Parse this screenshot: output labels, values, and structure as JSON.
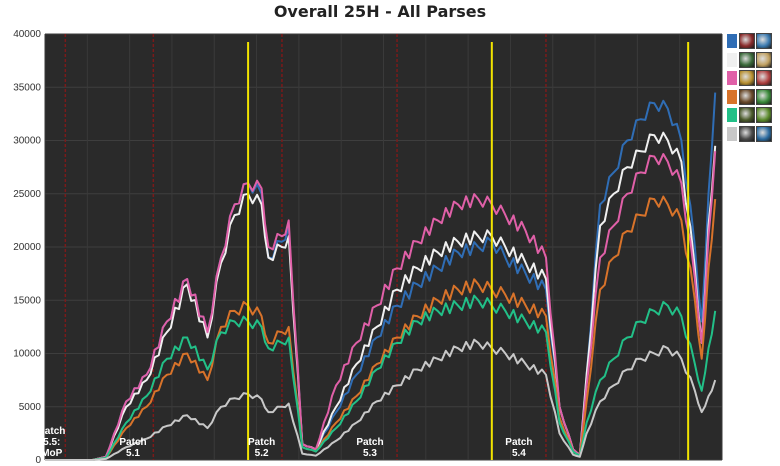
{
  "chart_data": {
    "type": "line",
    "title": "Overall 25H - All Parses",
    "xlabel": "",
    "ylabel": "",
    "ylim": [
      0,
      40000
    ],
    "yticks": [
      0,
      5000,
      10000,
      15000,
      20000,
      25000,
      30000,
      35000,
      40000
    ],
    "x_range": [
      0,
      100
    ],
    "grid": true,
    "legend_placement": "right",
    "patch_markers": [
      {
        "x": 1,
        "lines": [
          "Patch",
          "5.5:",
          "MoP"
        ]
      },
      {
        "x": 13,
        "lines": [
          "Patch",
          "5.1"
        ]
      },
      {
        "x": 32,
        "lines": [
          "Patch",
          "5.2"
        ]
      },
      {
        "x": 48,
        "lines": [
          "Patch",
          "5.3"
        ]
      },
      {
        "x": 70,
        "lines": [
          "Patch",
          "5.4"
        ]
      }
    ],
    "yellow_lines_x": [
      30,
      66,
      95
    ],
    "red_lines_x": [
      3,
      16,
      35,
      52,
      74
    ],
    "series": [
      {
        "color": "#2f6db5",
        "x": [
          0,
          7,
          9,
          12,
          15,
          18,
          21,
          24,
          26,
          28,
          30,
          32,
          33,
          35,
          36,
          38,
          40,
          43,
          46,
          49,
          52,
          55,
          58,
          61,
          64,
          66,
          68,
          71,
          74,
          76,
          78,
          79,
          80,
          82,
          84,
          86,
          88,
          90,
          92,
          94,
          96,
          97,
          98,
          99
        ],
        "y": [
          0,
          0,
          300,
          5500,
          8000,
          13000,
          17000,
          12000,
          19000,
          24000,
          26000,
          25000,
          19000,
          20500,
          22000,
          1500,
          1000,
          4500,
          8000,
          11500,
          14500,
          16500,
          18000,
          19500,
          20000,
          20500,
          19000,
          17500,
          16000,
          5000,
          1000,
          500,
          8000,
          24000,
          27000,
          30000,
          32000,
          33500,
          33000,
          30000,
          20000,
          13000,
          25000,
          34500
        ]
      },
      {
        "color": "#f0f0f0",
        "x": [
          0,
          7,
          9,
          12,
          15,
          18,
          21,
          24,
          26,
          28,
          30,
          32,
          33,
          35,
          36,
          38,
          40,
          43,
          46,
          49,
          52,
          55,
          58,
          61,
          64,
          66,
          68,
          71,
          74,
          76,
          78,
          79,
          80,
          82,
          84,
          86,
          88,
          90,
          92,
          94,
          96,
          97,
          98,
          99
        ],
        "y": [
          0,
          0,
          300,
          5000,
          7500,
          12000,
          16500,
          11500,
          18500,
          23000,
          25000,
          24000,
          19000,
          20000,
          21000,
          1500,
          1000,
          5000,
          9000,
          12500,
          16000,
          18000,
          19500,
          20500,
          21000,
          21000,
          20000,
          18500,
          17000,
          5000,
          1000,
          500,
          8000,
          22000,
          25000,
          27500,
          29000,
          30500,
          30000,
          28000,
          18000,
          11000,
          22000,
          29500
        ]
      },
      {
        "color": "#e060a8",
        "x": [
          0,
          7,
          9,
          12,
          15,
          18,
          21,
          24,
          26,
          28,
          30,
          32,
          33,
          35,
          36,
          38,
          40,
          43,
          46,
          49,
          52,
          55,
          58,
          61,
          64,
          66,
          68,
          71,
          74,
          76,
          78,
          79,
          80,
          82,
          84,
          86,
          88,
          90,
          92,
          94,
          96,
          97,
          98,
          99
        ],
        "y": [
          0,
          0,
          300,
          5500,
          8000,
          13000,
          17000,
          12000,
          19000,
          24000,
          26000,
          25500,
          20000,
          21000,
          22500,
          1500,
          1000,
          7000,
          11000,
          14500,
          18000,
          20500,
          22500,
          24000,
          24500,
          24000,
          23000,
          21500,
          19000,
          5000,
          1000,
          500,
          7000,
          19000,
          22000,
          25000,
          27000,
          28500,
          28000,
          26000,
          17000,
          11000,
          21000,
          29000
        ]
      },
      {
        "color": "#d8732a",
        "x": [
          0,
          7,
          9,
          12,
          15,
          18,
          21,
          24,
          26,
          28,
          30,
          32,
          33,
          35,
          36,
          38,
          40,
          43,
          46,
          49,
          52,
          55,
          58,
          61,
          64,
          66,
          68,
          71,
          74,
          76,
          78,
          79,
          80,
          82,
          84,
          86,
          88,
          90,
          92,
          94,
          96,
          97,
          98,
          99
        ],
        "y": [
          0,
          0,
          200,
          3000,
          5000,
          8000,
          10000,
          7500,
          12500,
          14000,
          14500,
          13500,
          11000,
          12000,
          12500,
          1200,
          800,
          3500,
          6000,
          9000,
          11500,
          13500,
          15000,
          16000,
          16500,
          16000,
          15500,
          14500,
          13500,
          4000,
          800,
          400,
          5500,
          16000,
          19000,
          21500,
          23000,
          24500,
          24000,
          22500,
          15000,
          9500,
          18000,
          24500
        ]
      },
      {
        "color": "#22c088",
        "x": [
          0,
          7,
          9,
          12,
          15,
          18,
          21,
          24,
          26,
          28,
          30,
          32,
          33,
          35,
          36,
          38,
          40,
          43,
          46,
          49,
          52,
          55,
          58,
          61,
          64,
          66,
          68,
          71,
          74,
          76,
          78,
          79,
          80,
          82,
          84,
          86,
          88,
          90,
          92,
          94,
          96,
          97,
          98,
          99
        ],
        "y": [
          0,
          0,
          200,
          3500,
          6000,
          9500,
          11500,
          8500,
          12000,
          13000,
          13000,
          12500,
          10500,
          11000,
          11500,
          1200,
          800,
          3000,
          5500,
          8500,
          11000,
          13000,
          14000,
          14500,
          15000,
          14500,
          14000,
          13000,
          12000,
          3500,
          800,
          400,
          3500,
          7500,
          9500,
          11500,
          13000,
          14000,
          14500,
          13500,
          9000,
          6500,
          10500,
          14000
        ]
      },
      {
        "color": "#c8c8c8",
        "x": [
          0,
          7,
          9,
          12,
          15,
          18,
          21,
          24,
          26,
          28,
          30,
          32,
          33,
          35,
          36,
          38,
          40,
          43,
          46,
          49,
          52,
          55,
          58,
          61,
          64,
          66,
          68,
          71,
          74,
          76,
          78,
          79,
          80,
          82,
          84,
          86,
          88,
          90,
          92,
          94,
          96,
          97,
          98,
          99
        ],
        "y": [
          0,
          0,
          100,
          1200,
          2000,
          3200,
          4200,
          3000,
          5000,
          5800,
          6200,
          5700,
          4500,
          5000,
          5300,
          600,
          400,
          1800,
          3500,
          5500,
          7000,
          8500,
          9500,
          10500,
          11000,
          10500,
          10000,
          9000,
          8000,
          2500,
          500,
          300,
          2500,
          5500,
          7000,
          8500,
          9500,
          10000,
          10500,
          9500,
          6500,
          4500,
          6000,
          7500
        ]
      }
    ]
  },
  "legend": {
    "rows": [
      {
        "color": "#2f6db5",
        "icons": [
          {
            "name": "blood-dk-icon",
            "bg": "#8a2a2a"
          },
          {
            "name": "frost-dk-icon",
            "bg": "#3a7ab0"
          }
        ]
      },
      {
        "color": "#f0f0f0",
        "icons": [
          {
            "name": "brewmaster-icon",
            "bg": "#3a6a3a"
          },
          {
            "name": "windwalker-icon",
            "bg": "#c0a060"
          }
        ]
      },
      {
        "color": "#e060a8",
        "icons": [
          {
            "name": "retribution-icon",
            "bg": "#b89030"
          },
          {
            "name": "protection-icon",
            "bg": "#b04040"
          }
        ]
      },
      {
        "color": "#d8732a",
        "icons": [
          {
            "name": "guardian-icon",
            "bg": "#6a4a2a"
          },
          {
            "name": "feral-icon",
            "bg": "#3a8a3a"
          }
        ]
      },
      {
        "color": "#22c088",
        "icons": [
          {
            "name": "enhancement-icon",
            "bg": "#4a5a2a"
          },
          {
            "name": "restoration-icon",
            "bg": "#5a8a2a"
          }
        ]
      },
      {
        "color": "#c8c8c8",
        "icons": [
          {
            "name": "warrior-fury-icon",
            "bg": "#4a4a4a"
          },
          {
            "name": "warrior-arms-icon",
            "bg": "#2a6aa0"
          }
        ]
      }
    ]
  }
}
